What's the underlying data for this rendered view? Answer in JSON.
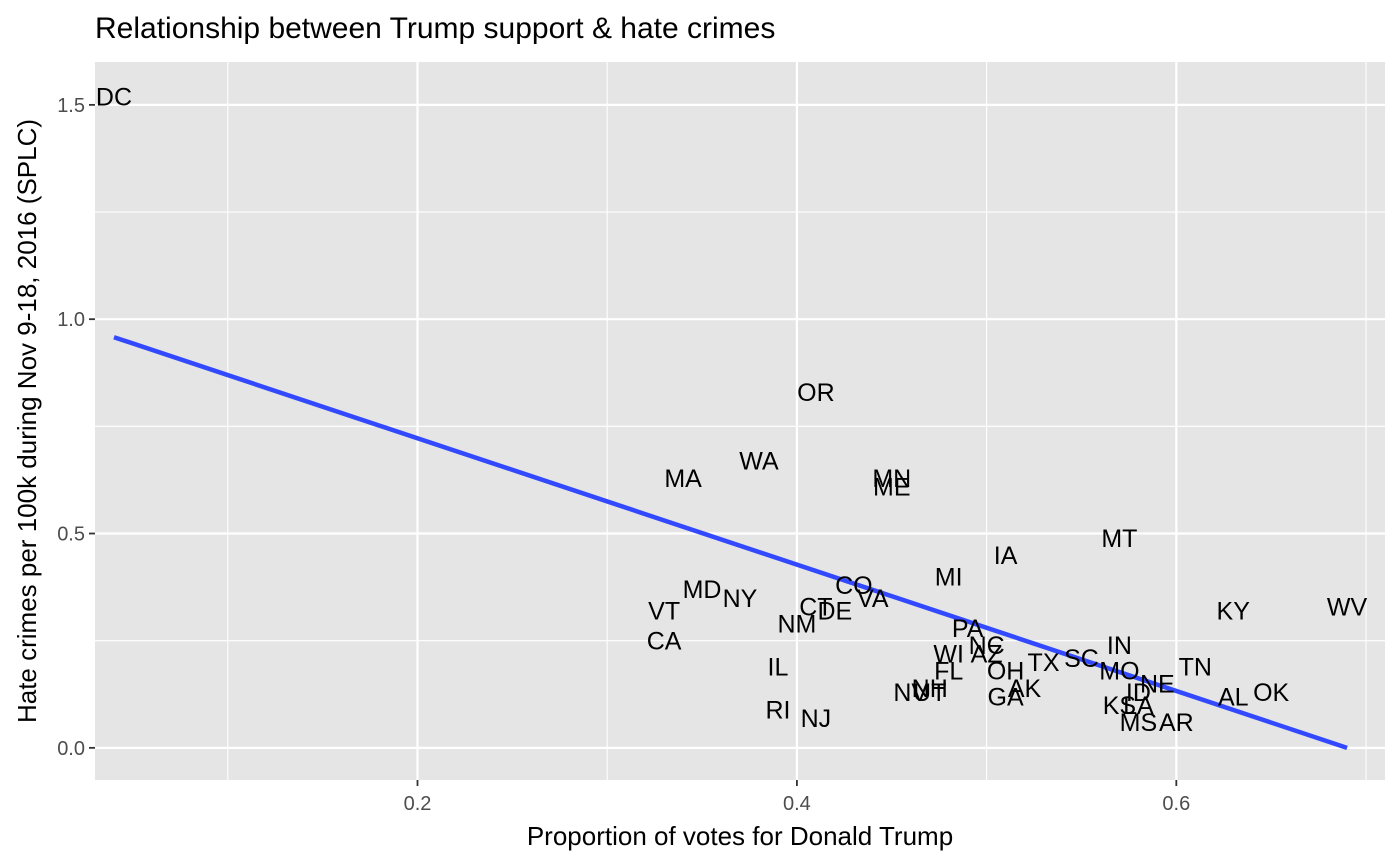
{
  "chart_data": {
    "type": "scatter",
    "title": "Relationship between Trump support & hate crimes",
    "xlabel": "Proportion of votes for Donald Trump",
    "ylabel": "Hate crimes per 100k during Nov 9-18, 2016 (SPLC)",
    "xlim": [
      0.03,
      0.71
    ],
    "ylim": [
      -0.075,
      1.6
    ],
    "x_ticks": [
      0.2,
      0.4,
      0.6
    ],
    "x_tick_labels": [
      "0.2",
      "0.4",
      "0.6"
    ],
    "y_ticks": [
      0.0,
      0.5,
      1.0,
      1.5
    ],
    "y_tick_labels": [
      "0.0",
      "0.5",
      "1.0",
      "1.5"
    ],
    "grid": true,
    "background": "#e5e5e5",
    "gridline_color": "#ffffff",
    "trend_line": {
      "color": "#3349ff",
      "x": [
        0.04,
        0.69
      ],
      "y": [
        0.958,
        0.0
      ]
    },
    "points": [
      {
        "label": "DC",
        "x": 0.04,
        "y": 1.52
      },
      {
        "label": "OR",
        "x": 0.41,
        "y": 0.83
      },
      {
        "label": "WA",
        "x": 0.38,
        "y": 0.67
      },
      {
        "label": "MA",
        "x": 0.34,
        "y": 0.63
      },
      {
        "label": "MN",
        "x": 0.45,
        "y": 0.63
      },
      {
        "label": "ME",
        "x": 0.45,
        "y": 0.61
      },
      {
        "label": "MT",
        "x": 0.57,
        "y": 0.49
      },
      {
        "label": "IA",
        "x": 0.51,
        "y": 0.45
      },
      {
        "label": "MI",
        "x": 0.48,
        "y": 0.4
      },
      {
        "label": "CO",
        "x": 0.43,
        "y": 0.38
      },
      {
        "label": "VA",
        "x": 0.44,
        "y": 0.35
      },
      {
        "label": "MD",
        "x": 0.35,
        "y": 0.37
      },
      {
        "label": "NY",
        "x": 0.37,
        "y": 0.35
      },
      {
        "label": "VT",
        "x": 0.33,
        "y": 0.32
      },
      {
        "label": "CT",
        "x": 0.41,
        "y": 0.33
      },
      {
        "label": "DE",
        "x": 0.42,
        "y": 0.32
      },
      {
        "label": "NM",
        "x": 0.4,
        "y": 0.29
      },
      {
        "label": "KY",
        "x": 0.63,
        "y": 0.32
      },
      {
        "label": "WV",
        "x": 0.69,
        "y": 0.33
      },
      {
        "label": "CA",
        "x": 0.33,
        "y": 0.25
      },
      {
        "label": "PA",
        "x": 0.49,
        "y": 0.28
      },
      {
        "label": "NC",
        "x": 0.5,
        "y": 0.24
      },
      {
        "label": "WI",
        "x": 0.48,
        "y": 0.22
      },
      {
        "label": "AZ",
        "x": 0.5,
        "y": 0.22
      },
      {
        "label": "IN",
        "x": 0.57,
        "y": 0.24
      },
      {
        "label": "TX",
        "x": 0.53,
        "y": 0.2
      },
      {
        "label": "SC",
        "x": 0.55,
        "y": 0.21
      },
      {
        "label": "TN",
        "x": 0.61,
        "y": 0.19
      },
      {
        "label": "FL",
        "x": 0.48,
        "y": 0.18
      },
      {
        "label": "OH",
        "x": 0.51,
        "y": 0.18
      },
      {
        "label": "MO",
        "x": 0.57,
        "y": 0.18
      },
      {
        "label": "NE",
        "x": 0.59,
        "y": 0.15
      },
      {
        "label": "IL",
        "x": 0.39,
        "y": 0.19
      },
      {
        "label": "AK",
        "x": 0.52,
        "y": 0.14
      },
      {
        "label": "NV",
        "x": 0.46,
        "y": 0.13
      },
      {
        "label": "NH",
        "x": 0.47,
        "y": 0.14
      },
      {
        "label": "UT",
        "x": 0.47,
        "y": 0.13
      },
      {
        "label": "ID",
        "x": 0.58,
        "y": 0.13
      },
      {
        "label": "AL",
        "x": 0.63,
        "y": 0.12
      },
      {
        "label": "OK",
        "x": 0.65,
        "y": 0.13
      },
      {
        "label": "GA",
        "x": 0.51,
        "y": 0.12
      },
      {
        "label": "KS",
        "x": 0.57,
        "y": 0.1
      },
      {
        "label": "LA",
        "x": 0.58,
        "y": 0.1
      },
      {
        "label": "RI",
        "x": 0.39,
        "y": 0.09
      },
      {
        "label": "NJ",
        "x": 0.41,
        "y": 0.07
      },
      {
        "label": "MS",
        "x": 0.58,
        "y": 0.06
      },
      {
        "label": "AR",
        "x": 0.6,
        "y": 0.06
      }
    ]
  }
}
